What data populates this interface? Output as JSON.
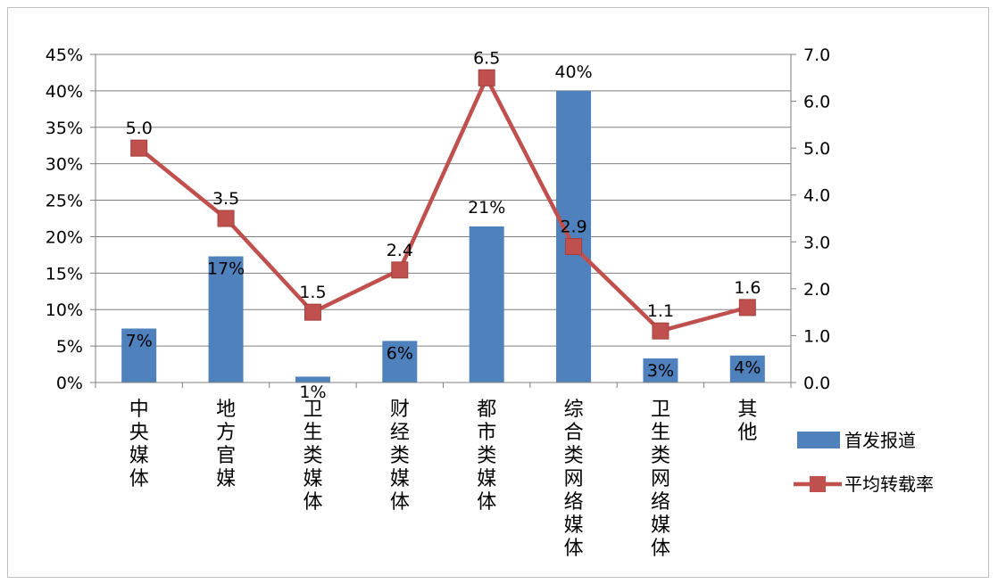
{
  "chart_data": {
    "type": "bar",
    "categories": [
      "中央媒体",
      "地方官媒",
      "卫生类媒体",
      "财经类媒体",
      "都市类媒体",
      "综合类网络媒体",
      "卫生类网络媒体",
      "其他"
    ],
    "series": [
      {
        "name": "首发报道",
        "type": "bar",
        "axis": "left",
        "values": [
          7.4,
          17.3,
          0.8,
          5.7,
          21.4,
          40.0,
          3.3,
          3.7
        ],
        "labels": [
          "7%",
          "17%",
          "1%",
          "6%",
          "21%",
          "40%",
          "3%",
          "4%"
        ],
        "color": "#4f81bd"
      },
      {
        "name": "平均转载率",
        "type": "line",
        "axis": "right",
        "values": [
          5.0,
          3.5,
          1.5,
          2.4,
          6.5,
          2.9,
          1.1,
          1.6
        ],
        "labels": [
          "5.0",
          "3.5",
          "1.5",
          "2.4",
          "6.5",
          "2.9",
          "1.1",
          "1.6"
        ],
        "color": "#c0504d"
      }
    ],
    "y_left": {
      "range": [
        0,
        45
      ],
      "ticks": [
        "0%",
        "5%",
        "10%",
        "15%",
        "20%",
        "25%",
        "30%",
        "35%",
        "40%",
        "45%"
      ]
    },
    "y_right": {
      "range": [
        0,
        7
      ],
      "ticks": [
        "0.0",
        "1.0",
        "2.0",
        "3.0",
        "4.0",
        "5.0",
        "6.0",
        "7.0"
      ]
    },
    "grid": true,
    "legend_position": "right"
  }
}
